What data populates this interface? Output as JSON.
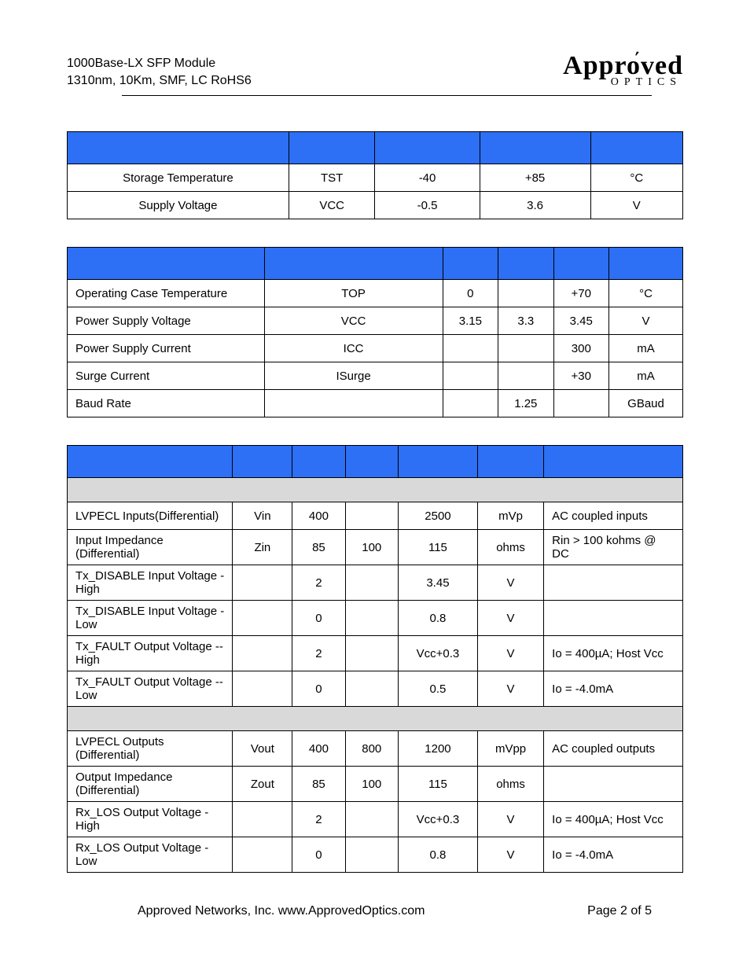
{
  "header": {
    "line1": "1000Base-LX SFP Module",
    "line2": "1310nm, 10Km, SMF, LC RoHS6"
  },
  "logo": {
    "top": "Approved",
    "bottom": "OPTICS"
  },
  "table1": {
    "header_color": "#2d6ff5",
    "rows": [
      {
        "param": "Storage Temperature",
        "symbol": "TST",
        "min": "-40",
        "max": "+85",
        "unit": "°C"
      },
      {
        "param": "Supply Voltage",
        "symbol": "VCC",
        "min": "-0.5",
        "max": "3.6",
        "unit": "V"
      }
    ]
  },
  "table2": {
    "header_color": "#2d6ff5",
    "rows": [
      {
        "param": "Operating Case Temperature",
        "symbol": "TOP",
        "min": "0",
        "typ": "",
        "max": "+70",
        "unit": "°C"
      },
      {
        "param": "Power Supply Voltage",
        "symbol": "VCC",
        "min": "3.15",
        "typ": "3.3",
        "max": "3.45",
        "unit": "V"
      },
      {
        "param": "Power Supply Current",
        "symbol": "ICC",
        "min": "",
        "typ": "",
        "max": "300",
        "unit": "mA"
      },
      {
        "param": "Surge Current",
        "symbol": "ISurge",
        "min": "",
        "typ": "",
        "max": "+30",
        "unit": "mA"
      },
      {
        "param": "Baud Rate",
        "symbol": "",
        "min": "",
        "typ": "1.25",
        "max": "",
        "unit": "GBaud"
      }
    ]
  },
  "table3": {
    "header_color": "#2d6ff5",
    "subheader_color": "#d9d9d9",
    "sub1": "",
    "rows1": [
      {
        "param": "LVPECL Inputs(Differential)",
        "symbol": "Vin",
        "min": "400",
        "typ": "",
        "max": "2500",
        "unit": "mVp",
        "note": "AC coupled inputs"
      },
      {
        "param": "Input Impedance (Differential)",
        "symbol": "Zin",
        "min": "85",
        "typ": "100",
        "max": "115",
        "unit": "ohms",
        "note": "Rin > 100 kohms @ DC"
      },
      {
        "param": "Tx_DISABLE Input Voltage - High",
        "symbol": "",
        "min": "2",
        "typ": "",
        "max": "3.45",
        "unit": "V",
        "note": ""
      },
      {
        "param": "Tx_DISABLE Input Voltage -Low",
        "symbol": "",
        "min": "0",
        "typ": "",
        "max": "0.8",
        "unit": "V",
        "note": ""
      },
      {
        "param": "Tx_FAULT Output Voltage -- High",
        "symbol": "",
        "min": "2",
        "typ": "",
        "max": "Vcc+0.3",
        "unit": "V",
        "note": "Io = 400µA; Host Vcc"
      },
      {
        "param": "Tx_FAULT Output Voltage --Low",
        "symbol": "",
        "min": "0",
        "typ": "",
        "max": "0.5",
        "unit": "V",
        "note": "Io = -4.0mA"
      }
    ],
    "sub2": "",
    "rows2": [
      {
        "param": "LVPECL Outputs (Differential)",
        "symbol": "Vout",
        "min": "400",
        "typ": "800",
        "max": "1200",
        "unit": "mVpp",
        "note": "AC coupled outputs"
      },
      {
        "param": "Output Impedance (Differential)",
        "symbol": "Zout",
        "min": "85",
        "typ": "100",
        "max": "115",
        "unit": "ohms",
        "note": ""
      },
      {
        "param": "Rx_LOS Output Voltage - High",
        "symbol": "",
        "min": "2",
        "typ": "",
        "max": "Vcc+0.3",
        "unit": "V",
        "note": "Io = 400µA; Host Vcc"
      },
      {
        "param": "Rx_LOS Output Voltage -Low",
        "symbol": "",
        "min": "0",
        "typ": "",
        "max": "0.8",
        "unit": "V",
        "note": "Io = -4.0mA"
      }
    ]
  },
  "footer": {
    "left": "Approved Networks, Inc.  www.ApprovedOptics.com",
    "right": "Page 2 of 5"
  }
}
